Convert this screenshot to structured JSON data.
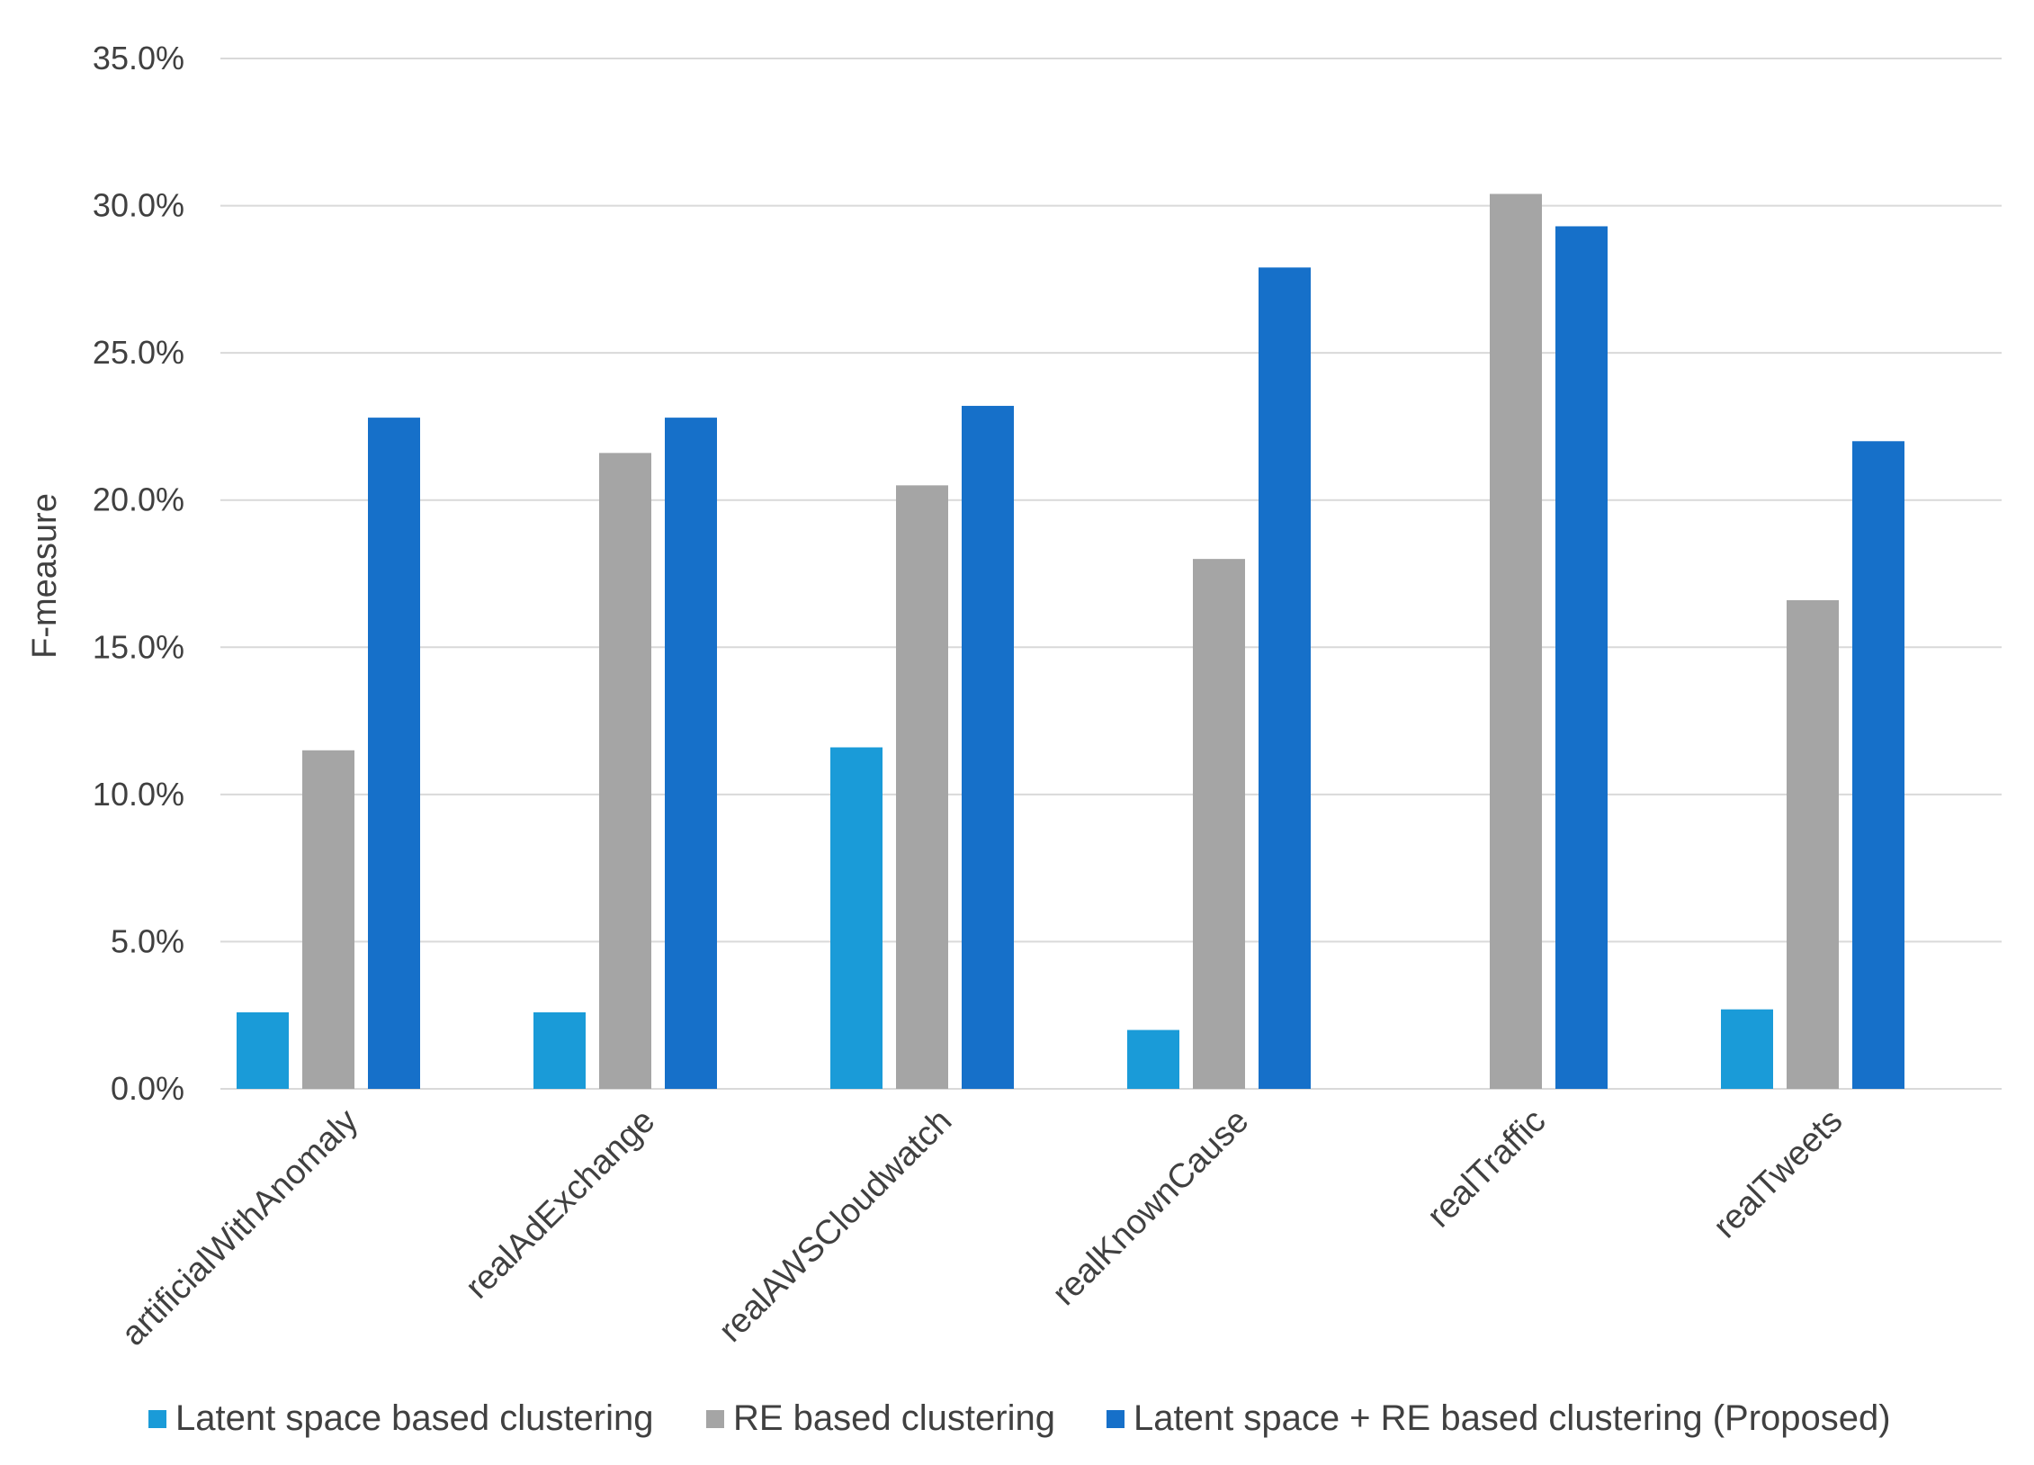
{
  "chart_data": {
    "type": "bar",
    "title": "",
    "xlabel": "",
    "ylabel": "F-measure",
    "ylim": [
      0,
      35
    ],
    "yticks": [
      "0.0%",
      "5.0%",
      "10.0%",
      "15.0%",
      "20.0%",
      "25.0%",
      "30.0%",
      "35.0%"
    ],
    "grid": "horizontal",
    "legend_position": "bottom",
    "categories": [
      "artificialWithAnomaly",
      "realAdExchange",
      "realAWSCloudwatch",
      "realKnownCause",
      "realTraffic",
      "realTweets"
    ],
    "series": [
      {
        "name": "Latent space based clustering",
        "color": "#1a9bd8",
        "values": [
          2.6,
          2.6,
          11.6,
          2.0,
          0,
          2.7
        ]
      },
      {
        "name": "RE based clustering",
        "color": "#a5a5a5",
        "values": [
          11.5,
          21.6,
          20.5,
          18.0,
          30.4,
          16.6
        ]
      },
      {
        "name": "Latent space + RE based clustering (Proposed)",
        "color": "#1670c9",
        "values": [
          22.8,
          22.8,
          23.2,
          27.9,
          29.3,
          22.0
        ]
      }
    ]
  }
}
